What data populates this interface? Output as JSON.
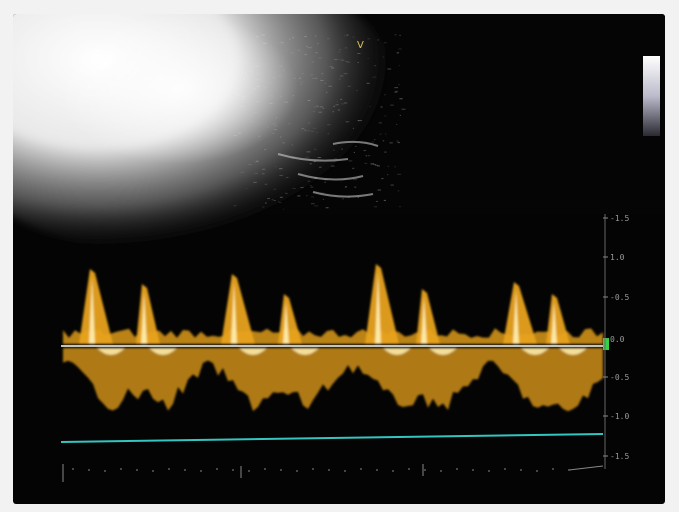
{
  "image": {
    "type": "photograph",
    "subject": "spectral Doppler ultrasound display with B-mode image above and waveform trace below"
  },
  "bmode": {
    "marker_label": "V"
  },
  "doppler": {
    "scale_labels": [
      "-1.5",
      "1.0",
      "-0.5",
      "0.0",
      "-0.5",
      "-1.0",
      "-1.5"
    ],
    "colors": {
      "trace": "#e8a21a",
      "trace_bright": "#fff0b0",
      "baseline": "#ffffff",
      "sweep_line": "#33c6c0",
      "baseline_marker": "#39d04a"
    }
  }
}
